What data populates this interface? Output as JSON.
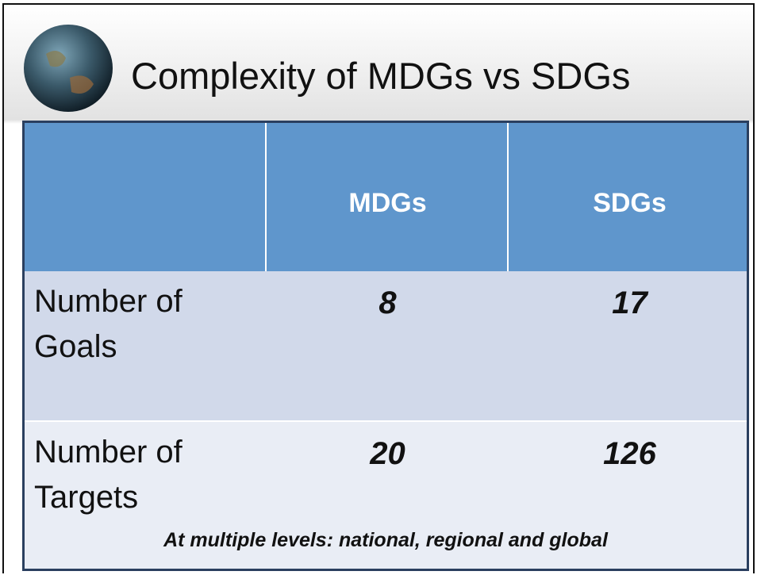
{
  "header": {
    "title": "Complexity of MDGs vs SDGs"
  },
  "table": {
    "columns": [
      "MDGs",
      "SDGs"
    ],
    "rows": [
      {
        "label": "Number of Goals",
        "values": [
          8,
          17
        ]
      },
      {
        "label": "Number of Targets",
        "values": [
          20,
          126
        ]
      }
    ],
    "note": "At multiple levels: national, regional and global"
  }
}
